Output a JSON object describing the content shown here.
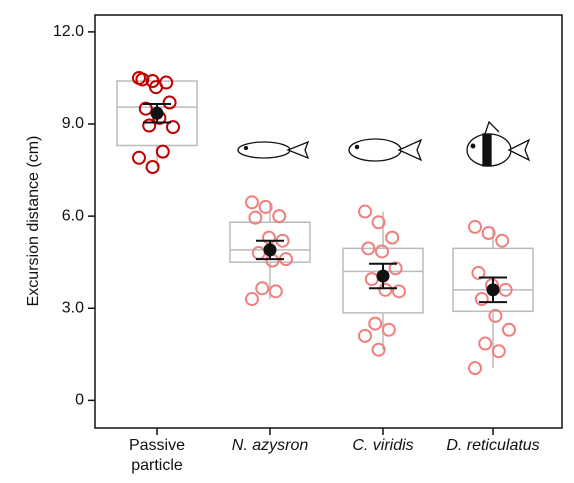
{
  "chart_data": {
    "type": "box",
    "y_label": "Excursion distance (cm)",
    "ylim": [
      -0.9,
      12.55
    ],
    "yticks": [
      0,
      {
        "value": 3,
        "label": "3.0"
      },
      {
        "value": 6,
        "label": "6.0"
      },
      {
        "value": 9,
        "label": "9.0"
      },
      {
        "value": 12,
        "label": "12.0"
      }
    ],
    "categories": [
      "Passive particle",
      "N. azysron",
      "C. viridis",
      "D. reticulatus"
    ],
    "groups": [
      {
        "color": "#c00000",
        "whisker_low": 7.6,
        "q1": 8.3,
        "median": 9.55,
        "q3": 10.4,
        "whisker_high": 10.5,
        "mean": 9.35,
        "error": 0.3,
        "points": [
          10.5,
          10.4,
          10.35,
          10.45,
          10.2,
          9.7,
          9.5,
          9.2,
          8.9,
          8.95,
          8.1,
          7.9,
          7.6
        ]
      },
      {
        "color": "#f08080",
        "whisker_low": 3.3,
        "q1": 4.5,
        "median": 4.9,
        "q3": 5.8,
        "whisker_high": 6.45,
        "mean": 4.9,
        "error": 0.3,
        "points": [
          6.45,
          6.3,
          6.0,
          5.95,
          5.3,
          5.2,
          4.8,
          4.55,
          4.6,
          3.65,
          3.55,
          3.3
        ]
      },
      {
        "color": "#f08080",
        "whisker_low": 1.65,
        "q1": 2.85,
        "median": 4.2,
        "q3": 4.95,
        "whisker_high": 6.15,
        "mean": 4.05,
        "error": 0.4,
        "points": [
          6.15,
          5.8,
          5.3,
          4.95,
          4.85,
          4.3,
          3.95,
          3.6,
          3.55,
          2.5,
          2.3,
          2.1,
          1.65
        ]
      },
      {
        "color": "#f08080",
        "whisker_low": 1.05,
        "q1": 2.9,
        "median": 3.6,
        "q3": 4.95,
        "whisker_high": 5.65,
        "mean": 3.6,
        "error": 0.4,
        "points": [
          5.65,
          5.45,
          5.2,
          4.15,
          3.75,
          3.6,
          3.3,
          2.75,
          2.3,
          1.85,
          1.6,
          1.05
        ]
      }
    ]
  }
}
